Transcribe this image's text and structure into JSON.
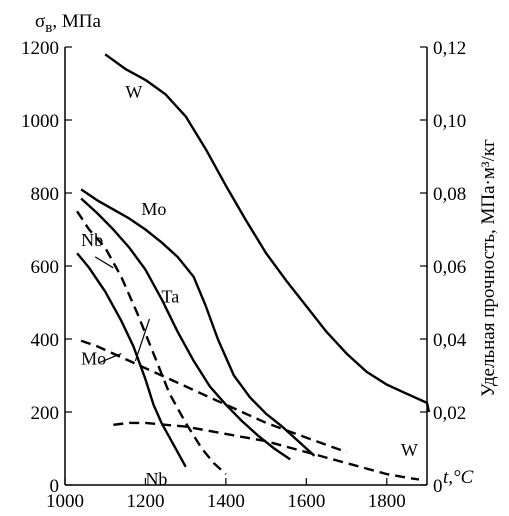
{
  "chart_data": {
    "type": "line",
    "x_axis": {
      "label": "t,°C",
      "range": [
        1000,
        1900
      ],
      "ticks": [
        1000,
        1200,
        1400,
        1600,
        1800
      ],
      "tick_labels": [
        "1000",
        "1200",
        "1400",
        "1600",
        "1800"
      ]
    },
    "y_axis_left": {
      "label_main": "σ",
      "label_sub": "в",
      "label_unit": ", МПа",
      "range": [
        0,
        1200
      ],
      "ticks": [
        0,
        200,
        400,
        600,
        800,
        1000,
        1200
      ],
      "tick_labels": [
        "0",
        "200",
        "400",
        "600",
        "800",
        "1000",
        "1200"
      ]
    },
    "y_axis_right": {
      "label": "Удельная прочность, МПа·м³/кг",
      "range": [
        0,
        0.12
      ],
      "ticks": [
        0,
        0.02,
        0.04,
        0.06,
        0.08,
        0.1,
        0.12
      ],
      "tick_labels": [
        "0",
        "0,02",
        "0,04",
        "0,06",
        "0,08",
        "0,10",
        "0,12"
      ]
    },
    "grid": false,
    "series": [
      {
        "name": "W",
        "axis": "left",
        "dashed": false,
        "points": [
          [
            1100,
            1180
          ],
          [
            1150,
            1140
          ],
          [
            1200,
            1110
          ],
          [
            1250,
            1070
          ],
          [
            1300,
            1010
          ],
          [
            1350,
            920
          ],
          [
            1400,
            820
          ],
          [
            1450,
            725
          ],
          [
            1500,
            635
          ],
          [
            1550,
            560
          ],
          [
            1600,
            490
          ],
          [
            1650,
            420
          ],
          [
            1700,
            360
          ],
          [
            1750,
            310
          ],
          [
            1800,
            275
          ],
          [
            1850,
            250
          ],
          [
            1900,
            225
          ],
          [
            1950,
            200
          ]
        ]
      },
      {
        "name": "Mo",
        "axis": "left",
        "dashed": false,
        "points": [
          [
            1040,
            810
          ],
          [
            1080,
            780
          ],
          [
            1120,
            755
          ],
          [
            1160,
            730
          ],
          [
            1200,
            700
          ],
          [
            1240,
            665
          ],
          [
            1280,
            625
          ],
          [
            1320,
            570
          ],
          [
            1350,
            490
          ],
          [
            1380,
            400
          ],
          [
            1420,
            300
          ],
          [
            1460,
            240
          ],
          [
            1500,
            195
          ],
          [
            1540,
            160
          ],
          [
            1580,
            120
          ],
          [
            1620,
            80
          ]
        ]
      },
      {
        "name": "Ta",
        "axis": "left",
        "dashed": false,
        "points": [
          [
            1040,
            785
          ],
          [
            1080,
            745
          ],
          [
            1120,
            700
          ],
          [
            1160,
            650
          ],
          [
            1200,
            590
          ],
          [
            1240,
            510
          ],
          [
            1280,
            420
          ],
          [
            1320,
            340
          ],
          [
            1360,
            270
          ],
          [
            1400,
            220
          ],
          [
            1440,
            175
          ],
          [
            1480,
            135
          ],
          [
            1520,
            100
          ],
          [
            1560,
            70
          ]
        ]
      },
      {
        "name": "Nb",
        "axis": "left",
        "dashed": false,
        "points": [
          [
            1030,
            635
          ],
          [
            1060,
            595
          ],
          [
            1100,
            530
          ],
          [
            1140,
            450
          ],
          [
            1170,
            380
          ],
          [
            1200,
            290
          ],
          [
            1220,
            220
          ],
          [
            1240,
            170
          ],
          [
            1260,
            130
          ],
          [
            1280,
            90
          ],
          [
            1300,
            50
          ]
        ]
      },
      {
        "name": "Nb",
        "axis": "right",
        "dashed": true,
        "points": [
          [
            1030,
            0.075
          ],
          [
            1060,
            0.07
          ],
          [
            1100,
            0.065
          ],
          [
            1140,
            0.057
          ],
          [
            1180,
            0.047
          ],
          [
            1220,
            0.036
          ],
          [
            1260,
            0.025
          ],
          [
            1300,
            0.017
          ],
          [
            1340,
            0.01
          ],
          [
            1370,
            0.006
          ],
          [
            1400,
            0.003
          ]
        ]
      },
      {
        "name": "Mo",
        "axis": "right",
        "dashed": true,
        "points": [
          [
            1040,
            0.0395
          ],
          [
            1080,
            0.038
          ],
          [
            1120,
            0.036
          ],
          [
            1160,
            0.034
          ],
          [
            1200,
            0.032
          ],
          [
            1250,
            0.0295
          ],
          [
            1300,
            0.027
          ],
          [
            1350,
            0.0245
          ],
          [
            1400,
            0.022
          ],
          [
            1450,
            0.0195
          ],
          [
            1500,
            0.017
          ],
          [
            1550,
            0.015
          ],
          [
            1600,
            0.013
          ],
          [
            1650,
            0.011
          ],
          [
            1700,
            0.009
          ]
        ]
      },
      {
        "name": "W",
        "axis": "right",
        "dashed": true,
        "points": [
          [
            1120,
            0.0165
          ],
          [
            1160,
            0.017
          ],
          [
            1200,
            0.017
          ],
          [
            1250,
            0.0165
          ],
          [
            1300,
            0.016
          ],
          [
            1350,
            0.015
          ],
          [
            1400,
            0.014
          ],
          [
            1450,
            0.013
          ],
          [
            1500,
            0.012
          ],
          [
            1550,
            0.0105
          ],
          [
            1600,
            0.009
          ],
          [
            1650,
            0.0075
          ],
          [
            1700,
            0.006
          ],
          [
            1750,
            0.0045
          ],
          [
            1800,
            0.003
          ],
          [
            1850,
            0.002
          ],
          [
            1880,
            0.0015
          ]
        ]
      }
    ],
    "annotations": [
      {
        "text": "W",
        "x": 1150,
        "y": 1060
      },
      {
        "text": "Mo",
        "x": 1190,
        "y": 740
      },
      {
        "text": "Nb",
        "x": 1040,
        "y": 655
      },
      {
        "text": "Ta",
        "x": 1240,
        "y": 500
      },
      {
        "text": "Mo",
        "x": 1040,
        "y": 330
      },
      {
        "text": "Nb",
        "x": 1200,
        "y": 0
      },
      {
        "text": "W",
        "x": 1835,
        "y": 0.008
      }
    ]
  }
}
